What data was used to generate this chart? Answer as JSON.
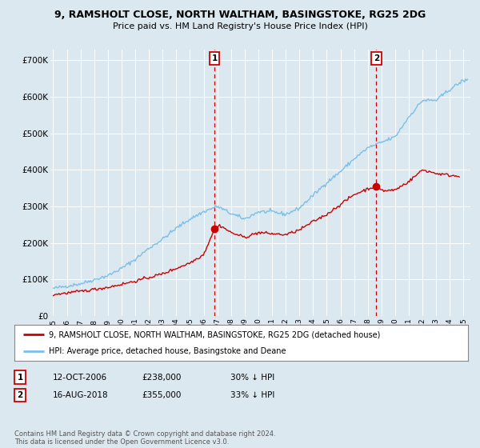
{
  "title": "9, RAMSHOLT CLOSE, NORTH WALTHAM, BASINGSTOKE, RG25 2DG",
  "subtitle": "Price paid vs. HM Land Registry's House Price Index (HPI)",
  "ylabel_ticks": [
    "£0",
    "£100K",
    "£200K",
    "£300K",
    "£400K",
    "£500K",
    "£600K",
    "£700K"
  ],
  "ytick_vals": [
    0,
    100000,
    200000,
    300000,
    400000,
    500000,
    600000,
    700000
  ],
  "ylim": [
    0,
    730000
  ],
  "xlim_start": 1994.8,
  "xlim_end": 2025.5,
  "hpi_color": "#7bbfe8",
  "price_color": "#cc0000",
  "marker1_date": 2006.79,
  "marker1_price": 238000,
  "marker1_label": "1",
  "marker2_date": 2018.62,
  "marker2_price": 355000,
  "marker2_label": "2",
  "vline_color": "#cc0000",
  "background_color": "#dce8f0",
  "plot_bg_color": "#dce8f0",
  "grid_color": "#ffffff",
  "legend_line1": "9, RAMSHOLT CLOSE, NORTH WALTHAM, BASINGSTOKE, RG25 2DG (detached house)",
  "legend_line2": "HPI: Average price, detached house, Basingstoke and Deane",
  "table_row1": [
    "1",
    "12-OCT-2006",
    "£238,000",
    "30% ↓ HPI"
  ],
  "table_row2": [
    "2",
    "16-AUG-2018",
    "£355,000",
    "33% ↓ HPI"
  ],
  "footer": "Contains HM Land Registry data © Crown copyright and database right 2024.\nThis data is licensed under the Open Government Licence v3.0.",
  "xticks": [
    1995,
    1996,
    1997,
    1998,
    1999,
    2000,
    2001,
    2002,
    2003,
    2004,
    2005,
    2006,
    2007,
    2008,
    2009,
    2010,
    2011,
    2012,
    2013,
    2014,
    2015,
    2016,
    2017,
    2018,
    2019,
    2020,
    2021,
    2022,
    2023,
    2024,
    2025
  ],
  "hpi_anchors_years": [
    1995,
    1997,
    1999,
    2000,
    2001,
    2002,
    2003,
    2004,
    2005,
    2006,
    2007,
    2008,
    2009,
    2010,
    2011,
    2012,
    2013,
    2014,
    2015,
    2016,
    2017,
    2018,
    2019,
    2020,
    2021,
    2022,
    2023,
    2024,
    2025
  ],
  "hpi_anchors_vals": [
    75000,
    88000,
    110000,
    130000,
    155000,
    185000,
    210000,
    240000,
    265000,
    285000,
    300000,
    280000,
    265000,
    285000,
    285000,
    278000,
    295000,
    330000,
    365000,
    395000,
    430000,
    460000,
    475000,
    490000,
    545000,
    590000,
    590000,
    620000,
    645000
  ],
  "price_anchors_years": [
    1995,
    1997,
    1999,
    2001,
    2003,
    2005,
    2006,
    2006.79,
    2007.2,
    2008,
    2009,
    2010,
    2011,
    2012,
    2013,
    2014,
    2015,
    2016,
    2017,
    2018.0,
    2018.62,
    2019.2,
    2020,
    2021,
    2022,
    2023,
    2024,
    2024.5
  ],
  "price_anchors_vals": [
    58000,
    67000,
    78000,
    95000,
    115000,
    145000,
    168000,
    238000,
    248000,
    228000,
    215000,
    228000,
    225000,
    222000,
    235000,
    258000,
    278000,
    305000,
    332000,
    348000,
    355000,
    342000,
    345000,
    368000,
    400000,
    390000,
    385000,
    383000
  ]
}
